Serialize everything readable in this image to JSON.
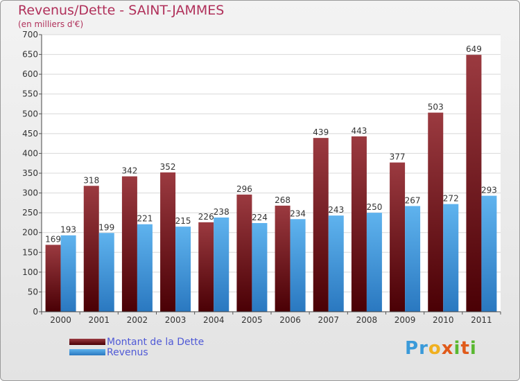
{
  "title": "Revenus/Dette - SAINT-JAMMES",
  "subtitle": "(en milliers d'€)",
  "logo": {
    "text": "Proxiti",
    "letters": [
      {
        "ch": "P",
        "color": "#3a9ad9"
      },
      {
        "ch": "r",
        "color": "#3a9ad9"
      },
      {
        "ch": "o",
        "color": "#f0b020"
      },
      {
        "ch": "x",
        "color": "#e05a1a"
      },
      {
        "ch": "i",
        "color": "#59b830"
      },
      {
        "ch": "t",
        "color": "#e05a1a"
      },
      {
        "ch": "i",
        "color": "#59b830"
      }
    ]
  },
  "chart_data": {
    "type": "bar",
    "categories": [
      "2000",
      "2001",
      "2002",
      "2003",
      "2004",
      "2005",
      "2006",
      "2007",
      "2008",
      "2009",
      "2010",
      "2011"
    ],
    "series": [
      {
        "name": "Montant de la Dette",
        "color": "#7a1a22",
        "values": [
          169,
          318,
          342,
          352,
          226,
          296,
          268,
          439,
          443,
          377,
          503,
          649
        ]
      },
      {
        "name": "Revenus",
        "color": "#3d9be0",
        "values": [
          193,
          199,
          221,
          215,
          238,
          224,
          234,
          243,
          250,
          267,
          272,
          293
        ]
      }
    ],
    "ylim": [
      0,
      700
    ],
    "yticks": [
      0,
      50,
      100,
      150,
      200,
      250,
      300,
      350,
      400,
      450,
      500,
      550,
      600,
      650,
      700
    ],
    "grid": true,
    "legend": "bottom-left"
  }
}
